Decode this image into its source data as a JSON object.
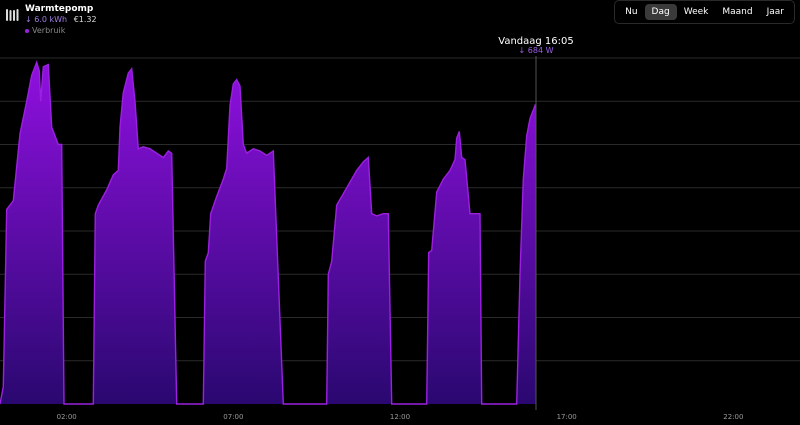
{
  "header": {
    "title": "Warmtepomp",
    "energy": "6.0 kWh",
    "energy_arrow": "↓",
    "cost": "€1.32",
    "legend_label": "Verbruik",
    "icon": "heat-pump-icon"
  },
  "tabs": [
    {
      "label": "Nu",
      "active": false
    },
    {
      "label": "Dag",
      "active": true
    },
    {
      "label": "Week",
      "active": false
    },
    {
      "label": "Maand",
      "active": false
    },
    {
      "label": "Jaar",
      "active": false
    }
  ],
  "cursor": {
    "time_label": "Vandaag 16:05",
    "value_label": "684 W",
    "arrow": "↓",
    "x_hour": 16.08
  },
  "colors": {
    "accent": "#9b20e0",
    "fill_top": "#9010e0",
    "fill_bottom": "#2a0870",
    "grid": "#2a2a2a"
  },
  "chart_data": {
    "type": "area",
    "series": [
      {
        "name": "Verbruik"
      }
    ],
    "x_unit": "hour of day",
    "xlim": [
      0,
      24
    ],
    "xticks": [
      {
        "hour": 2,
        "label": "02:00"
      },
      {
        "hour": 7,
        "label": "07:00"
      },
      {
        "hour": 12,
        "label": "12:00"
      },
      {
        "hour": 17,
        "label": "17:00"
      },
      {
        "hour": 22,
        "label": "22:00"
      }
    ],
    "ylim": [
      0,
      800
    ],
    "ygrid": [
      100,
      200,
      300,
      400,
      500,
      600,
      700,
      800
    ],
    "points": [
      [
        0.0,
        0
      ],
      [
        0.1,
        40
      ],
      [
        0.2,
        450
      ],
      [
        0.4,
        470
      ],
      [
        0.6,
        625
      ],
      [
        0.8,
        700
      ],
      [
        0.95,
        760
      ],
      [
        1.1,
        790
      ],
      [
        1.18,
        770
      ],
      [
        1.22,
        700
      ],
      [
        1.3,
        780
      ],
      [
        1.45,
        785
      ],
      [
        1.55,
        640
      ],
      [
        1.75,
        600
      ],
      [
        1.85,
        600
      ],
      [
        1.92,
        0
      ],
      [
        2.8,
        0
      ],
      [
        2.86,
        440
      ],
      [
        2.95,
        460
      ],
      [
        3.2,
        495
      ],
      [
        3.4,
        530
      ],
      [
        3.55,
        540
      ],
      [
        3.6,
        640
      ],
      [
        3.7,
        720
      ],
      [
        3.85,
        765
      ],
      [
        3.95,
        775
      ],
      [
        4.05,
        700
      ],
      [
        4.15,
        590
      ],
      [
        4.3,
        595
      ],
      [
        4.5,
        590
      ],
      [
        4.7,
        580
      ],
      [
        4.9,
        570
      ],
      [
        5.05,
        585
      ],
      [
        5.15,
        580
      ],
      [
        5.3,
        0
      ],
      [
        6.1,
        0
      ],
      [
        6.16,
        330
      ],
      [
        6.25,
        350
      ],
      [
        6.32,
        440
      ],
      [
        6.5,
        480
      ],
      [
        6.7,
        520
      ],
      [
        6.8,
        545
      ],
      [
        6.9,
        690
      ],
      [
        7.0,
        740
      ],
      [
        7.1,
        750
      ],
      [
        7.2,
        735
      ],
      [
        7.3,
        600
      ],
      [
        7.4,
        580
      ],
      [
        7.6,
        590
      ],
      [
        7.8,
        585
      ],
      [
        8.0,
        575
      ],
      [
        8.2,
        585
      ],
      [
        8.5,
        0
      ],
      [
        9.8,
        0
      ],
      [
        9.85,
        300
      ],
      [
        9.95,
        330
      ],
      [
        10.1,
        460
      ],
      [
        10.4,
        500
      ],
      [
        10.7,
        540
      ],
      [
        10.9,
        560
      ],
      [
        11.05,
        570
      ],
      [
        11.15,
        440
      ],
      [
        11.3,
        435
      ],
      [
        11.5,
        440
      ],
      [
        11.65,
        440
      ],
      [
        11.75,
        0
      ],
      [
        12.8,
        0
      ],
      [
        12.86,
        350
      ],
      [
        12.95,
        355
      ],
      [
        13.1,
        490
      ],
      [
        13.3,
        520
      ],
      [
        13.5,
        540
      ],
      [
        13.65,
        565
      ],
      [
        13.7,
        615
      ],
      [
        13.78,
        630
      ],
      [
        13.85,
        570
      ],
      [
        13.95,
        565
      ],
      [
        14.1,
        440
      ],
      [
        14.3,
        440
      ],
      [
        14.4,
        440
      ],
      [
        14.45,
        0
      ],
      [
        15.5,
        0
      ],
      [
        15.6,
        300
      ],
      [
        15.7,
        520
      ],
      [
        15.8,
        620
      ],
      [
        15.9,
        660
      ],
      [
        16.05,
        690
      ],
      [
        16.08,
        684
      ]
    ]
  }
}
